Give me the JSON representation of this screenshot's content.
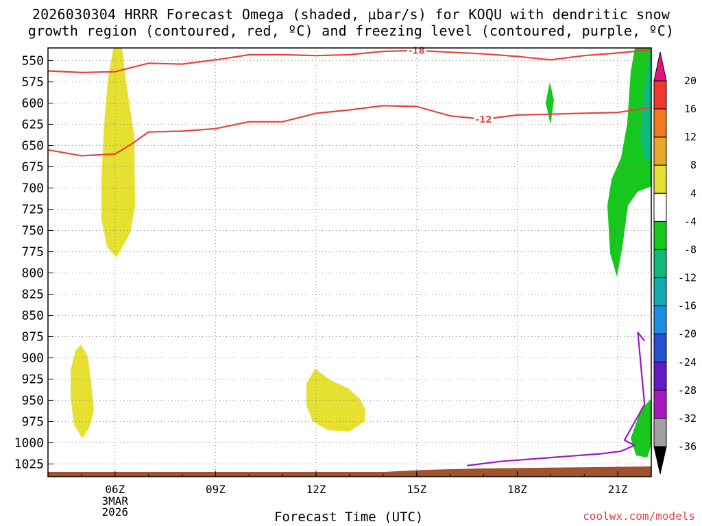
{
  "title_line1": "2026030304 HRRR Forecast Omega (shaded, μbar/s) for KOQU with dendritic snow",
  "title_line2": "growth region (contoured, red, ºC) and freezing level (contoured, purple, ºC)",
  "credit": "coolwx.com/models",
  "chart_data": {
    "type": "contour",
    "xlabel": "Forecast Time (UTC)",
    "x_ticks": [
      "06Z",
      "09Z",
      "12Z",
      "15Z",
      "18Z",
      "21Z"
    ],
    "x_sublabel": [
      "3MAR",
      "2026"
    ],
    "y_ticks": [
      "550",
      "575",
      "600",
      "625",
      "650",
      "675",
      "700",
      "725",
      "750",
      "775",
      "800",
      "825",
      "850",
      "875",
      "900",
      "925",
      "950",
      "975",
      "1000",
      "1025"
    ],
    "y_axis": "pressure (hPa), inverted",
    "xlim_hours": [
      4,
      22
    ],
    "ylim_hpa": [
      535,
      1040
    ],
    "grid": true,
    "colorbar": {
      "labels": [
        "20",
        "16",
        "12",
        "8",
        "4",
        "-4",
        "-8",
        "-12",
        "-16",
        "-20",
        "-24",
        "-28",
        "-32",
        "-36"
      ],
      "colors": [
        "#e8117f",
        "#f0392d",
        "#f07a1e",
        "#e8a828",
        "#e6e030",
        "#ffffff",
        "#17c81c",
        "#10b97a",
        "#10aab0",
        "#1b8ee6",
        "#2450d2",
        "#6418c8",
        "#a818c0",
        "#a0a0a0",
        "#000000"
      ]
    },
    "isotherm_labels": [
      "-18",
      "-12"
    ],
    "series": [
      {
        "name": "-18",
        "x": [
          4.0,
          5.0,
          6.0,
          7.0,
          8.0,
          9.0,
          10.0,
          11.0,
          12.0,
          13.0,
          14.0,
          15.0,
          16.0,
          17.0,
          18.0,
          19.0,
          20.0,
          21.0,
          22.0
        ],
        "y": [
          562,
          564,
          563,
          553,
          554,
          549,
          543,
          543,
          544,
          543,
          539,
          538,
          540,
          542,
          545,
          549,
          544,
          541,
          537
        ]
      },
      {
        "name": "-12",
        "x": [
          4.0,
          5.0,
          6.0,
          6.5,
          7.0,
          8.0,
          9.0,
          10.0,
          11.0,
          12.0,
          13.0,
          14.0,
          15.0,
          16.0,
          17.0,
          18.0,
          19.0,
          20.0,
          21.0,
          22.0
        ],
        "y": [
          655,
          662,
          660,
          648,
          634,
          633,
          630,
          622,
          622,
          612,
          608,
          603,
          604,
          615,
          619,
          614,
          613,
          612,
          611,
          605
        ]
      },
      {
        "name": "0",
        "x": [
          16.5,
          17.5,
          18.5,
          19.5,
          20.5,
          21.1,
          21.5,
          21.2,
          21.8,
          21.6,
          21.8
        ],
        "y": [
          1027,
          1022,
          1019,
          1016,
          1013,
          1010,
          1003,
          997,
          955,
          870,
          880
        ]
      }
    ]
  }
}
